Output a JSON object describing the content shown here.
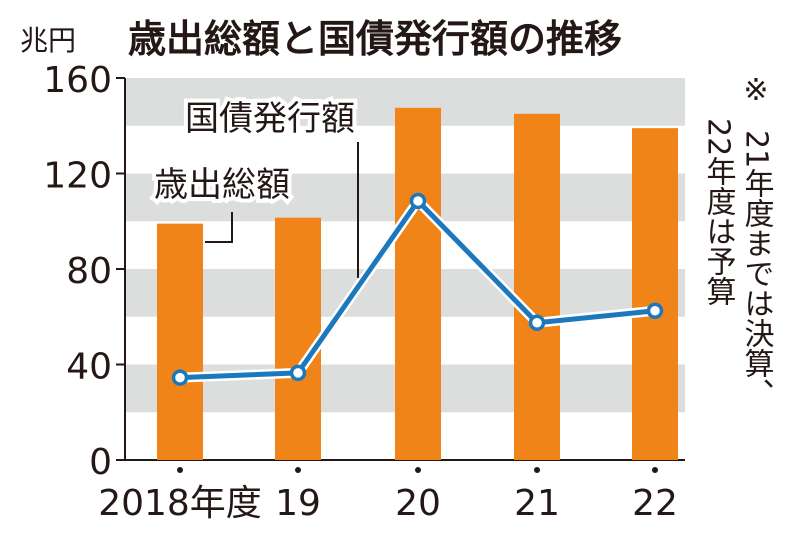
{
  "chart_data": {
    "type": "bar",
    "title": "歳出総額と国債発行額の推移",
    "unit_label": "兆円",
    "categories": [
      "2018年度",
      "19",
      "20",
      "21",
      "22"
    ],
    "ylim": [
      0,
      160
    ],
    "yticks": [
      0,
      40,
      80,
      120,
      160
    ],
    "grid_bands": true,
    "series": [
      {
        "name": "歳出総額",
        "type": "bar",
        "color": "#f08418",
        "values": [
          99,
          101.5,
          147.5,
          145,
          139
        ]
      },
      {
        "name": "国債発行額",
        "type": "line",
        "color": "#1c78bc",
        "values": [
          34.5,
          36.5,
          108.5,
          57.5,
          62.5
        ]
      }
    ],
    "note": [
      "※",
      "21年度までは決算、",
      "22年度は予算"
    ]
  }
}
